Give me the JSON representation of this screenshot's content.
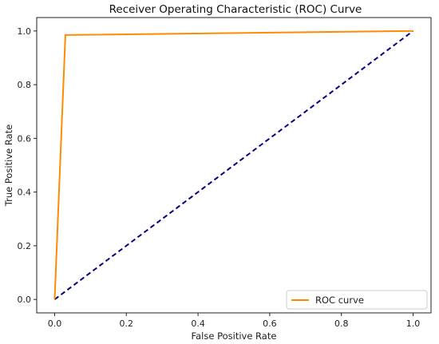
{
  "chart_data": {
    "type": "line",
    "title": "Receiver Operating Characteristic (ROC) Curve",
    "xlabel": "False Positive Rate",
    "ylabel": "True Positive Rate",
    "xlim": [
      -0.05,
      1.05
    ],
    "ylim": [
      -0.05,
      1.05
    ],
    "xticks": [
      "0.0",
      "0.2",
      "0.4",
      "0.6",
      "0.8",
      "1.0"
    ],
    "yticks": [
      "0.0",
      "0.2",
      "0.4",
      "0.6",
      "0.8",
      "1.0"
    ],
    "grid": false,
    "legend": {
      "placement": "lower-right",
      "entries": [
        "ROC curve"
      ]
    },
    "series": [
      {
        "name": "ROC curve",
        "color": "#ff8c00",
        "style": "solid",
        "x": [
          0.0,
          0.03,
          1.0
        ],
        "y": [
          0.0,
          0.985,
          1.0
        ]
      },
      {
        "color": "#000080",
        "style": "dashed",
        "x": [
          0.0,
          1.0
        ],
        "y": [
          0.0,
          1.0
        ]
      }
    ]
  }
}
